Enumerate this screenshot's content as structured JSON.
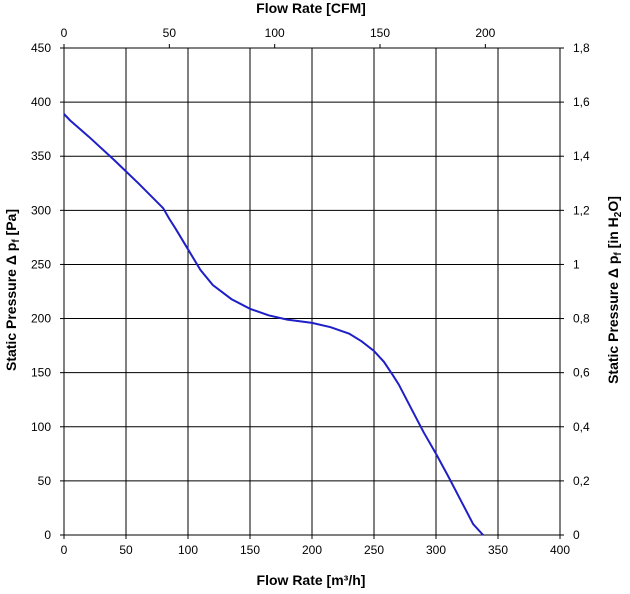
{
  "chart_data": {
    "type": "line",
    "title": "",
    "grid": true,
    "xlabel_bottom": {
      "text": "Flow Rate [m³/h]"
    },
    "xlabel_top": {
      "text": "Flow Rate [CFM]"
    },
    "ylabel_left": {
      "prefix": "Static Pressure Δ p",
      "sub": "f",
      "suffix": " [Pa]"
    },
    "ylabel_right": {
      "prefix": "Static Pressure Δ p",
      "sub": "f",
      "mid": " [in H",
      "sub2": "2",
      "suffix": "O]"
    },
    "xlim": [
      0,
      400
    ],
    "ylim": [
      0,
      450
    ],
    "x_ticks_bottom": [
      "0",
      "50",
      "100",
      "150",
      "200",
      "250",
      "300",
      "350",
      "400"
    ],
    "x_ticks_top": [
      "0",
      "50",
      "100",
      "150",
      "200"
    ],
    "y_ticks_left": [
      "0",
      "50",
      "100",
      "150",
      "200",
      "250",
      "300",
      "350",
      "400",
      "450"
    ],
    "y_ticks_right": [
      "0",
      "0,2",
      "0,4",
      "0,6",
      "0,8",
      "1",
      "1,2",
      "1,4",
      "1,6",
      "1,8"
    ],
    "line_color": "#1f1fc8",
    "series": [
      {
        "x": [
          0,
          5,
          20,
          40,
          60,
          80,
          85,
          90,
          100,
          110,
          120,
          135,
          150,
          165,
          180,
          200,
          215,
          230,
          240,
          250,
          258,
          265,
          270,
          280,
          290,
          300,
          310,
          320,
          330,
          338
        ],
        "y": [
          389,
          383,
          368,
          347,
          325,
          302,
          292,
          283,
          264,
          245,
          231,
          218,
          209,
          203,
          199,
          196,
          192,
          186,
          179,
          170,
          160,
          148,
          139,
          117,
          95,
          75,
          54,
          32,
          10,
          0
        ]
      }
    ]
  }
}
